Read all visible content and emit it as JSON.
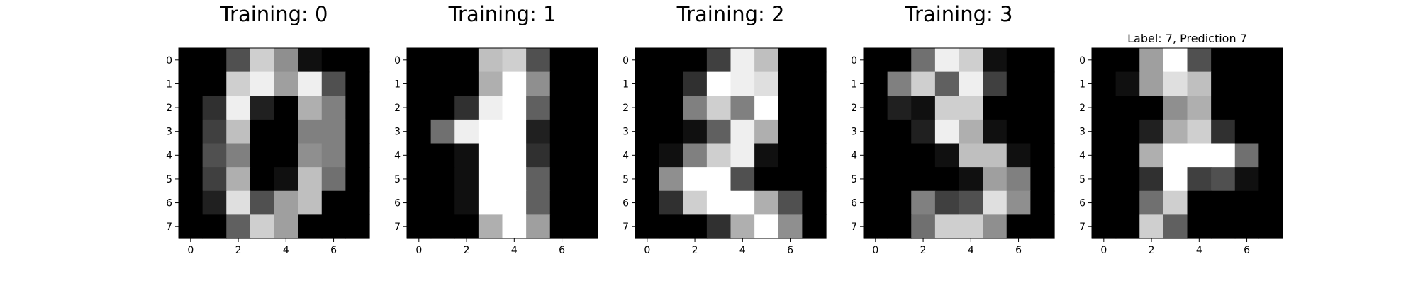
{
  "chart_data": [
    {
      "type": "heatmap",
      "title": "Training: 0",
      "colormap": "gray",
      "vmin": 0,
      "vmax": 16,
      "xticks": [
        0,
        2,
        4,
        6
      ],
      "yticks": [
        0,
        1,
        2,
        3,
        4,
        5,
        6,
        7
      ],
      "grid": false,
      "values": [
        [
          0,
          0,
          5,
          13,
          9,
          1,
          0,
          0
        ],
        [
          0,
          0,
          13,
          15,
          10,
          15,
          5,
          0
        ],
        [
          0,
          3,
          15,
          2,
          0,
          11,
          8,
          0
        ],
        [
          0,
          4,
          12,
          0,
          0,
          8,
          8,
          0
        ],
        [
          0,
          5,
          8,
          0,
          0,
          9,
          8,
          0
        ],
        [
          0,
          4,
          11,
          0,
          1,
          12,
          7,
          0
        ],
        [
          0,
          2,
          14,
          5,
          10,
          12,
          0,
          0
        ],
        [
          0,
          0,
          6,
          13,
          10,
          0,
          0,
          0
        ]
      ]
    },
    {
      "type": "heatmap",
      "title": "Training: 1",
      "colormap": "gray",
      "vmin": 0,
      "vmax": 16,
      "xticks": [
        0,
        2,
        4,
        6
      ],
      "yticks": [
        0,
        1,
        2,
        3,
        4,
        5,
        6,
        7
      ],
      "grid": false,
      "values": [
        [
          0,
          0,
          0,
          12,
          13,
          5,
          0,
          0
        ],
        [
          0,
          0,
          0,
          11,
          16,
          9,
          0,
          0
        ],
        [
          0,
          0,
          3,
          15,
          16,
          6,
          0,
          0
        ],
        [
          0,
          7,
          15,
          16,
          16,
          2,
          0,
          0
        ],
        [
          0,
          0,
          1,
          16,
          16,
          3,
          0,
          0
        ],
        [
          0,
          0,
          1,
          16,
          16,
          6,
          0,
          0
        ],
        [
          0,
          0,
          1,
          16,
          16,
          6,
          0,
          0
        ],
        [
          0,
          0,
          0,
          11,
          16,
          10,
          0,
          0
        ]
      ]
    },
    {
      "type": "heatmap",
      "title": "Training: 2",
      "colormap": "gray",
      "vmin": 0,
      "vmax": 16,
      "xticks": [
        0,
        2,
        4,
        6
      ],
      "yticks": [
        0,
        1,
        2,
        3,
        4,
        5,
        6,
        7
      ],
      "grid": false,
      "values": [
        [
          0,
          0,
          0,
          4,
          15,
          12,
          0,
          0
        ],
        [
          0,
          0,
          3,
          16,
          15,
          14,
          0,
          0
        ],
        [
          0,
          0,
          8,
          13,
          8,
          16,
          0,
          0
        ],
        [
          0,
          0,
          1,
          6,
          15,
          11,
          0,
          0
        ],
        [
          0,
          1,
          8,
          13,
          15,
          1,
          0,
          0
        ],
        [
          0,
          9,
          16,
          16,
          5,
          0,
          0,
          0
        ],
        [
          0,
          3,
          13,
          16,
          16,
          11,
          5,
          0
        ],
        [
          0,
          0,
          0,
          3,
          11,
          16,
          9,
          0
        ]
      ]
    },
    {
      "type": "heatmap",
      "title": "Training: 3",
      "colormap": "gray",
      "vmin": 0,
      "vmax": 16,
      "xticks": [
        0,
        2,
        4,
        6
      ],
      "yticks": [
        0,
        1,
        2,
        3,
        4,
        5,
        6,
        7
      ],
      "grid": false,
      "values": [
        [
          0,
          0,
          7,
          15,
          13,
          1,
          0,
          0
        ],
        [
          0,
          8,
          13,
          6,
          15,
          4,
          0,
          0
        ],
        [
          0,
          2,
          1,
          13,
          13,
          0,
          0,
          0
        ],
        [
          0,
          0,
          2,
          15,
          11,
          1,
          0,
          0
        ],
        [
          0,
          0,
          0,
          1,
          12,
          12,
          1,
          0
        ],
        [
          0,
          0,
          0,
          0,
          1,
          10,
          8,
          0
        ],
        [
          0,
          0,
          8,
          4,
          5,
          14,
          9,
          0
        ],
        [
          0,
          0,
          7,
          13,
          13,
          9,
          0,
          0
        ]
      ]
    },
    {
      "type": "heatmap",
      "title": "Label: 7, Prediction 7",
      "colormap": "gray",
      "vmin": 0,
      "vmax": 16,
      "xticks": [
        0,
        2,
        4,
        6
      ],
      "yticks": [
        0,
        1,
        2,
        3,
        4,
        5,
        6,
        7
      ],
      "grid": false,
      "values": [
        [
          0,
          0,
          10,
          16,
          5,
          0,
          0,
          0
        ],
        [
          0,
          1,
          10,
          14,
          12,
          0,
          0,
          0
        ],
        [
          0,
          0,
          0,
          9,
          11,
          0,
          0,
          0
        ],
        [
          0,
          0,
          2,
          11,
          13,
          3,
          0,
          0
        ],
        [
          0,
          0,
          11,
          16,
          16,
          16,
          7,
          0
        ],
        [
          0,
          0,
          3,
          16,
          4,
          5,
          1,
          0
        ],
        [
          0,
          0,
          7,
          13,
          0,
          0,
          0,
          0
        ],
        [
          0,
          0,
          13,
          6,
          0,
          0,
          0,
          0
        ]
      ]
    }
  ]
}
